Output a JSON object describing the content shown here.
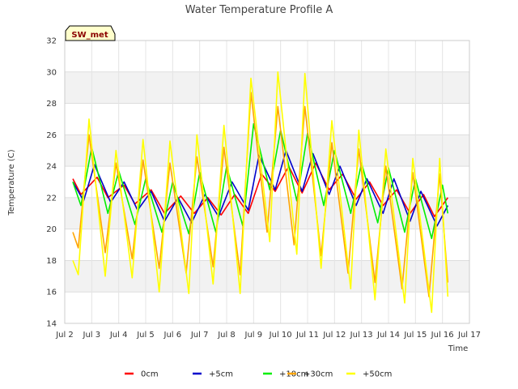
{
  "chart_data": {
    "type": "line",
    "title": "Water Temperature Profile A",
    "xlabel": "Time",
    "ylabel": "Temperature (C)",
    "site_tag": "SW_met",
    "ylim": [
      14,
      32
    ],
    "yticks": [
      14,
      16,
      18,
      20,
      22,
      24,
      26,
      28,
      30,
      32
    ],
    "xlim": [
      2,
      17
    ],
    "xticks": [
      {
        "value": 2,
        "label": "Jul 2"
      },
      {
        "value": 3,
        "label": "Jul 3"
      },
      {
        "value": 4,
        "label": "Jul 4"
      },
      {
        "value": 5,
        "label": "Jul 5"
      },
      {
        "value": 6,
        "label": "Jul 6"
      },
      {
        "value": 7,
        "label": "Jul 7"
      },
      {
        "value": 8,
        "label": "Jul 8"
      },
      {
        "value": 9,
        "label": "Jul 9"
      },
      {
        "value": 10,
        "label": "Jul 10"
      },
      {
        "value": 11,
        "label": "Jul 11"
      },
      {
        "value": 12,
        "label": "Jul 12"
      },
      {
        "value": 13,
        "label": "Jul 13"
      },
      {
        "value": 14,
        "label": "Jul 14"
      },
      {
        "value": 15,
        "label": "Jul 15"
      },
      {
        "value": 16,
        "label": "Jul 16"
      },
      {
        "value": 17,
        "label": "Jul 17"
      }
    ],
    "grid": true,
    "legend_position": "bottom",
    "series": [
      {
        "name": "0cm",
        "color": "#ff0000",
        "points": [
          [
            2.3,
            23.2
          ],
          [
            2.6,
            22.2
          ],
          [
            3.2,
            23.3
          ],
          [
            3.6,
            22.0
          ],
          [
            4.2,
            22.8
          ],
          [
            4.6,
            21.6
          ],
          [
            5.2,
            22.5
          ],
          [
            5.7,
            21.0
          ],
          [
            6.3,
            22.1
          ],
          [
            6.8,
            21.0
          ],
          [
            7.3,
            22.0
          ],
          [
            7.8,
            20.9
          ],
          [
            8.3,
            22.2
          ],
          [
            8.8,
            21.0
          ],
          [
            9.3,
            23.5
          ],
          [
            9.8,
            22.4
          ],
          [
            10.3,
            24.0
          ],
          [
            10.8,
            22.3
          ],
          [
            11.3,
            24.2
          ],
          [
            11.8,
            22.5
          ],
          [
            12.3,
            23.5
          ],
          [
            12.8,
            21.9
          ],
          [
            13.3,
            23.0
          ],
          [
            13.8,
            21.5
          ],
          [
            14.3,
            22.5
          ],
          [
            14.8,
            21.0
          ],
          [
            15.3,
            22.2
          ],
          [
            15.7,
            20.8
          ],
          [
            16.2,
            22.0
          ]
        ]
      },
      {
        "name": "+5cm",
        "color": "#0000cc",
        "points": [
          [
            2.3,
            23.0
          ],
          [
            2.7,
            21.8
          ],
          [
            3.1,
            24.1
          ],
          [
            3.7,
            21.7
          ],
          [
            4.2,
            23.0
          ],
          [
            4.7,
            21.2
          ],
          [
            5.2,
            22.4
          ],
          [
            5.7,
            20.5
          ],
          [
            6.2,
            22.0
          ],
          [
            6.7,
            20.4
          ],
          [
            7.2,
            22.2
          ],
          [
            7.7,
            20.8
          ],
          [
            8.2,
            23.0
          ],
          [
            8.8,
            21.2
          ],
          [
            9.2,
            24.7
          ],
          [
            9.8,
            22.5
          ],
          [
            10.2,
            25.0
          ],
          [
            10.8,
            22.4
          ],
          [
            11.2,
            24.8
          ],
          [
            11.8,
            22.2
          ],
          [
            12.2,
            24.0
          ],
          [
            12.8,
            21.5
          ],
          [
            13.2,
            23.2
          ],
          [
            13.8,
            21.0
          ],
          [
            14.2,
            23.2
          ],
          [
            14.8,
            20.5
          ],
          [
            15.2,
            22.4
          ],
          [
            15.8,
            20.2
          ],
          [
            16.2,
            21.5
          ]
        ]
      },
      {
        "name": "+10cm",
        "color": "#00ee00",
        "points": [
          [
            2.3,
            23.0
          ],
          [
            2.6,
            21.5
          ],
          [
            3.0,
            25.2
          ],
          [
            3.6,
            21.0
          ],
          [
            4.0,
            23.7
          ],
          [
            4.6,
            20.3
          ],
          [
            5.0,
            23.2
          ],
          [
            5.6,
            19.8
          ],
          [
            6.0,
            23.0
          ],
          [
            6.6,
            19.7
          ],
          [
            7.0,
            23.6
          ],
          [
            7.6,
            19.8
          ],
          [
            8.0,
            24.0
          ],
          [
            8.6,
            20.2
          ],
          [
            9.0,
            26.7
          ],
          [
            9.6,
            22.5
          ],
          [
            10.0,
            26.3
          ],
          [
            10.6,
            21.8
          ],
          [
            11.0,
            26.1
          ],
          [
            11.6,
            21.5
          ],
          [
            12.0,
            25.0
          ],
          [
            12.6,
            21.0
          ],
          [
            13.0,
            24.2
          ],
          [
            13.6,
            20.4
          ],
          [
            14.0,
            23.9
          ],
          [
            14.6,
            19.8
          ],
          [
            15.0,
            23.2
          ],
          [
            15.6,
            19.4
          ],
          [
            16.0,
            22.8
          ],
          [
            16.2,
            21.0
          ]
        ]
      },
      {
        "name": "+30cm",
        "color": "#ffa500",
        "points": [
          [
            2.3,
            19.8
          ],
          [
            2.5,
            18.8
          ],
          [
            2.9,
            26.0
          ],
          [
            3.5,
            18.5
          ],
          [
            3.9,
            24.2
          ],
          [
            4.5,
            18.1
          ],
          [
            4.9,
            24.4
          ],
          [
            5.5,
            17.5
          ],
          [
            5.9,
            24.2
          ],
          [
            6.5,
            17.2
          ],
          [
            6.9,
            24.6
          ],
          [
            7.5,
            17.6
          ],
          [
            7.9,
            25.2
          ],
          [
            8.5,
            17.1
          ],
          [
            8.9,
            28.7
          ],
          [
            9.5,
            19.8
          ],
          [
            9.9,
            27.8
          ],
          [
            10.5,
            19.0
          ],
          [
            10.9,
            27.8
          ],
          [
            11.5,
            18.3
          ],
          [
            11.9,
            25.5
          ],
          [
            12.5,
            17.2
          ],
          [
            12.9,
            25.1
          ],
          [
            13.5,
            16.6
          ],
          [
            13.9,
            24.0
          ],
          [
            14.5,
            16.2
          ],
          [
            14.9,
            23.6
          ],
          [
            15.5,
            15.7
          ],
          [
            15.9,
            23.5
          ],
          [
            16.2,
            16.6
          ]
        ]
      },
      {
        "name": "+50cm",
        "color": "#ffff00",
        "points": [
          [
            2.3,
            18.0
          ],
          [
            2.5,
            17.1
          ],
          [
            2.9,
            27.0
          ],
          [
            3.5,
            17.0
          ],
          [
            3.9,
            25.0
          ],
          [
            4.5,
            16.9
          ],
          [
            4.9,
            25.7
          ],
          [
            5.5,
            16.0
          ],
          [
            5.9,
            25.6
          ],
          [
            6.6,
            15.9
          ],
          [
            6.9,
            26.0
          ],
          [
            7.5,
            16.5
          ],
          [
            7.9,
            26.6
          ],
          [
            8.5,
            15.9
          ],
          [
            8.9,
            29.6
          ],
          [
            9.6,
            19.2
          ],
          [
            9.9,
            30.0
          ],
          [
            10.6,
            18.4
          ],
          [
            10.9,
            29.9
          ],
          [
            11.5,
            17.5
          ],
          [
            11.9,
            26.9
          ],
          [
            12.6,
            16.2
          ],
          [
            12.9,
            26.3
          ],
          [
            13.5,
            15.5
          ],
          [
            13.9,
            25.1
          ],
          [
            14.6,
            15.3
          ],
          [
            14.9,
            24.5
          ],
          [
            15.6,
            14.7
          ],
          [
            15.9,
            24.5
          ],
          [
            16.2,
            15.7
          ]
        ]
      }
    ]
  }
}
